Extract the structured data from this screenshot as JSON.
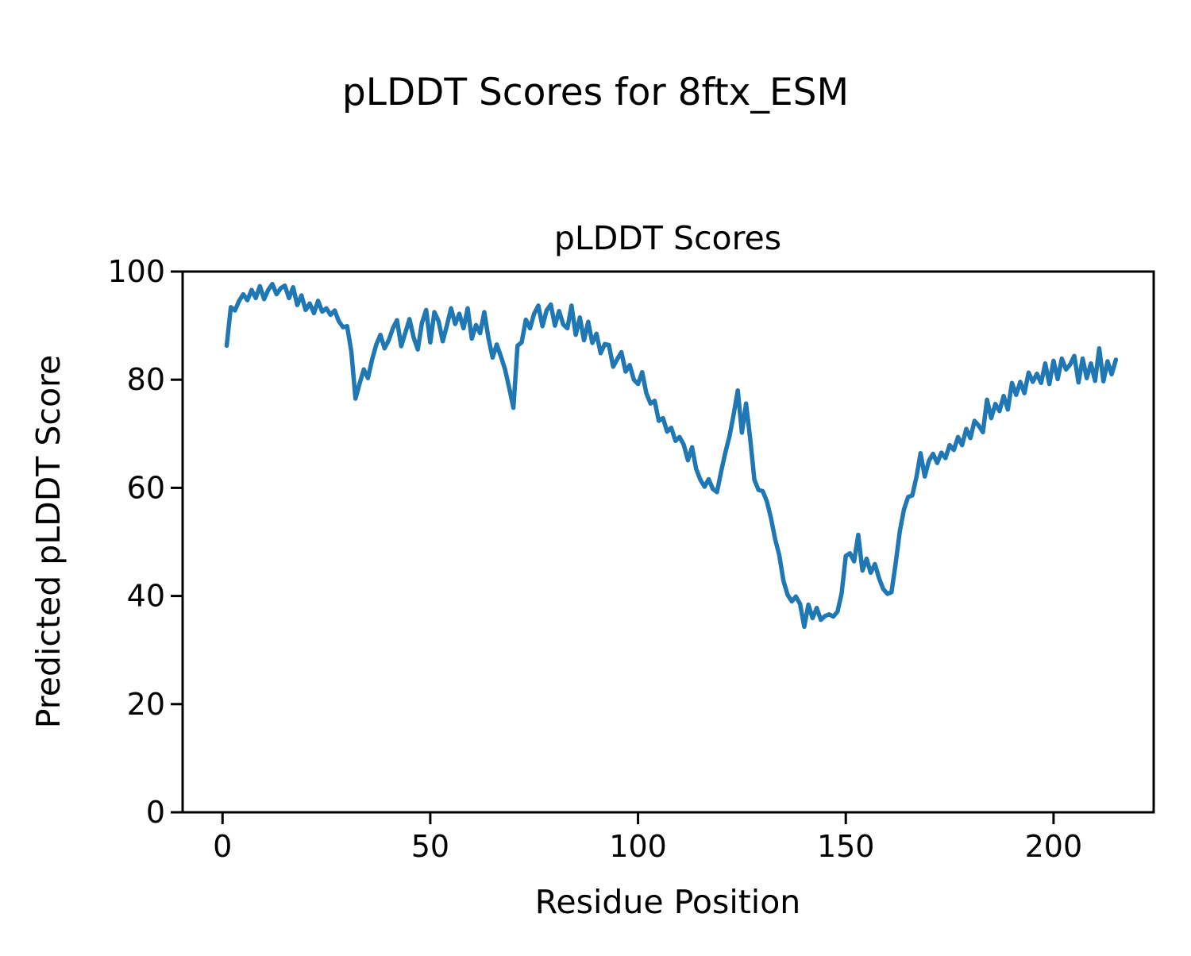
{
  "figure": {
    "suptitle": "pLDDT Scores for 8ftx_ESM"
  },
  "chart_data": {
    "type": "line",
    "title": "pLDDT Scores",
    "suptitle": "pLDDT Scores for 8ftx_ESM",
    "xlabel": "Residue Position",
    "ylabel": "Predicted pLDDT Score",
    "legend": null,
    "grid": false,
    "line_color": "#1f77b4",
    "x_start": 1,
    "x_step": 1,
    "xlim": [
      -9.6,
      224.1
    ],
    "ylim": [
      0,
      100
    ],
    "x_ticks": [
      0,
      50,
      100,
      150,
      200
    ],
    "y_ticks": [
      0,
      20,
      40,
      60,
      80,
      100
    ],
    "values": [
      86.3,
      93.4,
      92.8,
      94.6,
      95.8,
      94.7,
      96.6,
      95.1,
      97.3,
      94.9,
      96.6,
      97.7,
      95.8,
      96.9,
      97.4,
      95.1,
      97.1,
      93.8,
      95.6,
      92.9,
      94.1,
      92.3,
      94.6,
      92.6,
      93.2,
      92.0,
      92.8,
      90.8,
      89.7,
      89.9,
      85.2,
      76.5,
      79.3,
      81.9,
      80.3,
      83.7,
      86.5,
      88.3,
      85.8,
      87.3,
      89.5,
      91.0,
      86.2,
      88.7,
      91.2,
      87.8,
      85.6,
      90.5,
      92.9,
      86.9,
      92.5,
      90.8,
      87.1,
      90.0,
      93.2,
      90.3,
      92.2,
      89.5,
      93.2,
      87.6,
      90.1,
      88.6,
      92.5,
      87.7,
      84.1,
      86.5,
      84.3,
      81.9,
      78.5,
      74.8,
      86.3,
      86.9,
      91.1,
      89.5,
      92.2,
      93.7,
      89.9,
      92.8,
      93.9,
      90.0,
      92.7,
      90.2,
      89.5,
      93.7,
      88.3,
      91.5,
      87.3,
      90.7,
      86.8,
      88.5,
      84.9,
      86.6,
      86.4,
      82.4,
      83.8,
      85.1,
      81.5,
      82.7,
      80.0,
      79.2,
      81.4,
      77.5,
      75.6,
      76.1,
      72.4,
      72.9,
      70.4,
      71.1,
      68.7,
      69.4,
      68.0,
      65.1,
      67.5,
      63.5,
      61.5,
      60.2,
      61.6,
      59.8,
      59.2,
      63.0,
      66.5,
      69.5,
      73.5,
      78.0,
      70.2,
      75.6,
      69.0,
      61.5,
      59.6,
      59.4,
      57.5,
      54.4,
      50.5,
      47.5,
      42.8,
      40.2,
      39.0,
      39.9,
      38.5,
      34.3,
      38.4,
      35.9,
      37.8,
      35.6,
      36.3,
      36.6,
      36.2,
      37.1,
      40.5,
      47.4,
      47.9,
      46.4,
      51.3,
      44.7,
      46.9,
      44.3,
      45.9,
      43.3,
      41.3,
      40.4,
      40.7,
      46.0,
      52.0,
      56.0,
      58.3,
      58.6,
      62.0,
      66.4,
      62.1,
      65.0,
      66.3,
      64.6,
      66.5,
      65.5,
      67.9,
      67.0,
      69.4,
      67.9,
      70.9,
      69.2,
      72.4,
      71.5,
      70.3,
      76.3,
      72.9,
      75.5,
      74.2,
      77.0,
      74.5,
      79.4,
      77.2,
      79.6,
      77.5,
      81.3,
      79.6,
      81.1,
      79.4,
      83.0,
      79.2,
      83.5,
      80.1,
      83.9,
      81.9,
      82.8,
      84.4,
      79.5,
      83.9,
      80.3,
      83.0,
      79.8,
      85.8,
      79.7,
      83.4,
      81.0,
      83.7
    ]
  }
}
